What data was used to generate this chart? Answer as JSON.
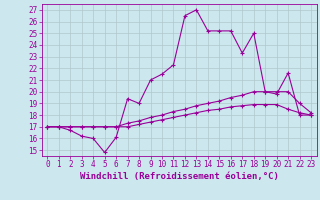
{
  "xlabel": "Windchill (Refroidissement éolien,°C)",
  "background_color": "#cce8ee",
  "line_color": "#990099",
  "xlim": [
    -0.5,
    23.5
  ],
  "ylim": [
    14.5,
    27.5
  ],
  "yticks": [
    15,
    16,
    17,
    18,
    19,
    20,
    21,
    22,
    23,
    24,
    25,
    26,
    27
  ],
  "xticks": [
    0,
    1,
    2,
    3,
    4,
    5,
    6,
    7,
    8,
    9,
    10,
    11,
    12,
    13,
    14,
    15,
    16,
    17,
    18,
    19,
    20,
    21,
    22,
    23
  ],
  "line1_x": [
    0,
    1,
    2,
    3,
    4,
    5,
    6,
    7,
    8,
    9,
    10,
    11,
    12,
    13,
    14,
    15,
    16,
    17,
    18,
    19,
    20,
    21,
    22,
    23
  ],
  "line1_y": [
    17.0,
    17.0,
    16.7,
    16.2,
    16.0,
    14.8,
    16.1,
    19.4,
    19.0,
    21.0,
    21.5,
    22.3,
    26.5,
    27.0,
    25.2,
    25.2,
    25.2,
    23.3,
    25.0,
    20.0,
    19.8,
    21.6,
    18.0,
    18.0
  ],
  "line2_x": [
    0,
    1,
    2,
    3,
    4,
    5,
    6,
    7,
    8,
    9,
    10,
    11,
    12,
    13,
    14,
    15,
    16,
    17,
    18,
    19,
    20,
    21,
    22,
    23
  ],
  "line2_y": [
    17.0,
    17.0,
    17.0,
    17.0,
    17.0,
    17.0,
    17.0,
    17.3,
    17.5,
    17.8,
    18.0,
    18.3,
    18.5,
    18.8,
    19.0,
    19.2,
    19.5,
    19.7,
    20.0,
    20.0,
    20.0,
    20.0,
    19.0,
    18.2
  ],
  "line3_x": [
    0,
    1,
    2,
    3,
    4,
    5,
    6,
    7,
    8,
    9,
    10,
    11,
    12,
    13,
    14,
    15,
    16,
    17,
    18,
    19,
    20,
    21,
    22,
    23
  ],
  "line3_y": [
    17.0,
    17.0,
    17.0,
    17.0,
    17.0,
    17.0,
    17.0,
    17.0,
    17.2,
    17.4,
    17.6,
    17.8,
    18.0,
    18.2,
    18.4,
    18.5,
    18.7,
    18.8,
    18.9,
    18.9,
    18.9,
    18.5,
    18.2,
    18.0
  ],
  "xlabel_fontsize": 6.5,
  "tick_fontsize": 5.5,
  "grid_color": "#b0c8cc"
}
